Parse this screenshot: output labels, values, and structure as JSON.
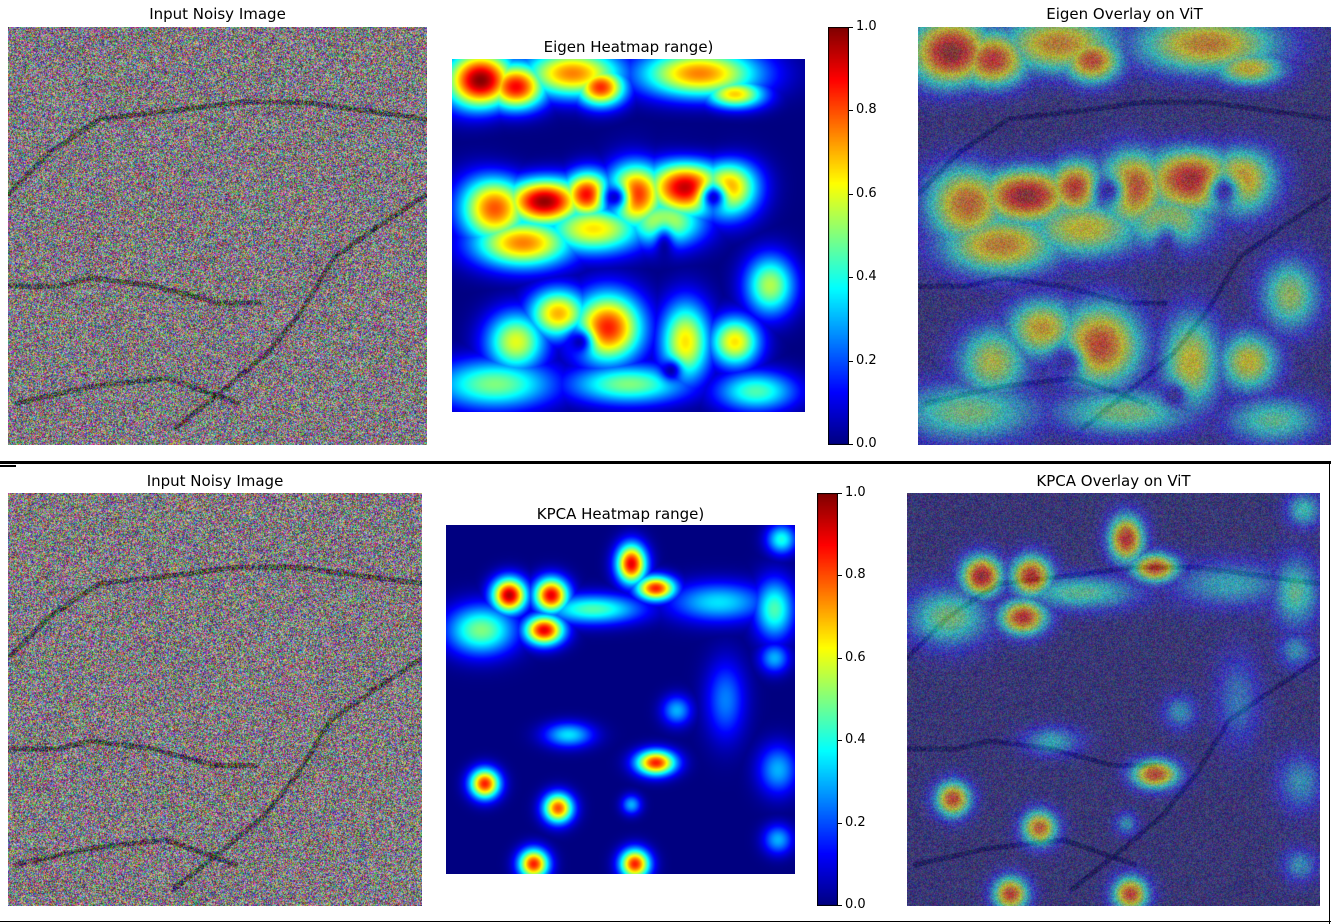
{
  "row1": {
    "noisy_title": "Input Noisy Image",
    "heatmap_title": "Eigen Heatmap range)",
    "overlay_title": "Eigen Overlay on ViT"
  },
  "row2": {
    "noisy_title": "Input Noisy Image",
    "heatmap_title": "KPCA Heatmap range)",
    "overlay_title": "KPCA Overlay on ViT"
  },
  "colorbar": {
    "colormap": "jet",
    "range": [
      0,
      1
    ],
    "ticks": [
      "0.0",
      "0.2",
      "0.4",
      "0.6",
      "0.8",
      "1.0"
    ]
  },
  "colors": {
    "noise_base": "#807a80",
    "vessel": "#2a2a2a",
    "overlay_base": "#34347a"
  }
}
